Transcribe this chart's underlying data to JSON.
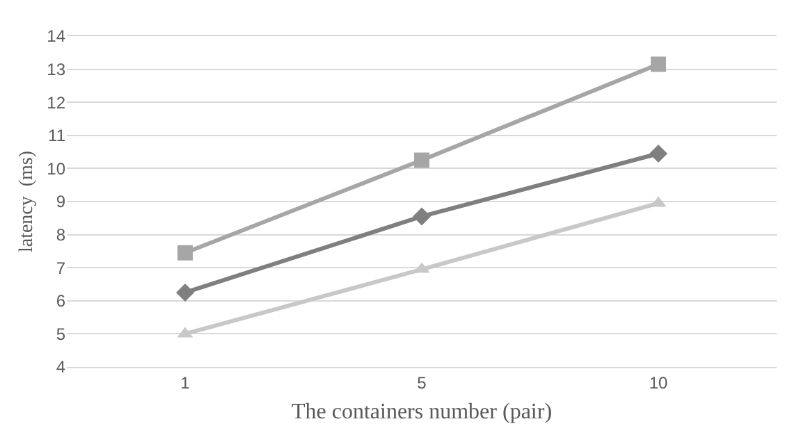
{
  "chart_data": {
    "type": "line",
    "xlabel": "The containers number (pair)",
    "ylabel": "latency  (ms)",
    "categories": [
      "1",
      "5",
      "10"
    ],
    "series": [
      {
        "color": "#a6a6a6",
        "marker": "square",
        "values": [
          7.45,
          10.25,
          13.15
        ]
      },
      {
        "color": "#7f7f7f",
        "marker": "diamond",
        "values": [
          6.25,
          8.55,
          10.45
        ]
      },
      {
        "color": "#c8c8c8",
        "marker": "triangle",
        "values": [
          5.0,
          6.95,
          8.95
        ]
      }
    ],
    "ylim": [
      4,
      14
    ],
    "yticks": [
      4,
      5,
      6,
      7,
      8,
      9,
      10,
      11,
      12,
      13,
      14
    ],
    "grid": "y",
    "line_style": "solid"
  }
}
